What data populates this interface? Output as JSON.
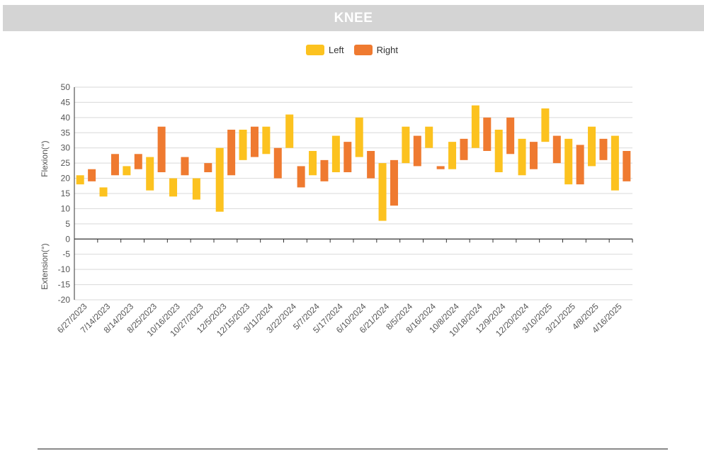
{
  "page": {
    "title": "KNEE"
  },
  "colors": {
    "left": "#fcc21f",
    "right": "#ef7a30",
    "title_bar": "#d4d4d4",
    "grid": "#d9d9d9",
    "axis": "#333333",
    "text": "#555555"
  },
  "chart_data": {
    "type": "bar",
    "subtype": "floating-range",
    "legend": [
      "Left",
      "Right"
    ],
    "legend_position": "top-center",
    "ylabel_top": "Flexion(°)",
    "ylabel_bottom": "Extension(°)",
    "ylim": [
      -20,
      50
    ],
    "yticks": [
      50,
      45,
      40,
      35,
      30,
      25,
      20,
      15,
      10,
      5,
      0,
      -5,
      -10,
      -15,
      -20
    ],
    "grid": true,
    "categories": [
      "6/27/2023",
      "7/14/2023",
      "8/14/2023",
      "8/25/2023",
      "10/16/2023",
      "10/27/2023",
      "12/5/2023",
      "12/15/2023",
      "3/11/2024",
      "3/22/2024",
      "5/7/2024",
      "5/17/2024",
      "6/10/2024",
      "6/21/2024",
      "8/5/2024",
      "8/16/2024",
      "10/8/2024",
      "10/18/2024",
      "12/9/2024",
      "12/20/2024",
      "3/10/2025",
      "3/21/2025",
      "4/8/2025",
      "4/16/2025"
    ],
    "series": [
      {
        "name": "Left",
        "ranges": [
          [
            18,
            21
          ],
          [
            14,
            17
          ],
          [
            21,
            24
          ],
          [
            16,
            27
          ],
          [
            14,
            20
          ],
          [
            13,
            20
          ],
          [
            9,
            30
          ],
          [
            26,
            36
          ],
          [
            28,
            37
          ],
          [
            30,
            41
          ],
          [
            21,
            29
          ],
          [
            22,
            34
          ],
          [
            27,
            40
          ],
          [
            6,
            25
          ],
          [
            25,
            37
          ],
          [
            30,
            37
          ],
          [
            23,
            32
          ],
          [
            30,
            44
          ],
          [
            22,
            36
          ],
          [
            21,
            33
          ],
          [
            32,
            43
          ],
          [
            18,
            33
          ],
          [
            24,
            37
          ],
          [
            16,
            34
          ]
        ]
      },
      {
        "name": "Right",
        "ranges": [
          [
            19,
            23
          ],
          [
            21,
            28
          ],
          [
            23,
            28
          ],
          [
            22,
            37
          ],
          [
            21,
            27
          ],
          [
            22,
            25
          ],
          [
            21,
            36
          ],
          [
            27,
            37
          ],
          [
            20,
            30
          ],
          [
            17,
            24
          ],
          [
            19,
            26
          ],
          [
            22,
            32
          ],
          [
            20,
            29
          ],
          [
            11,
            26
          ],
          [
            24,
            34
          ],
          [
            23,
            24
          ],
          [
            26,
            33
          ],
          [
            29,
            40
          ],
          [
            28,
            40
          ],
          [
            23,
            32
          ],
          [
            25,
            34
          ],
          [
            18,
            31
          ],
          [
            26,
            33
          ],
          [
            19,
            29
          ]
        ]
      }
    ]
  }
}
